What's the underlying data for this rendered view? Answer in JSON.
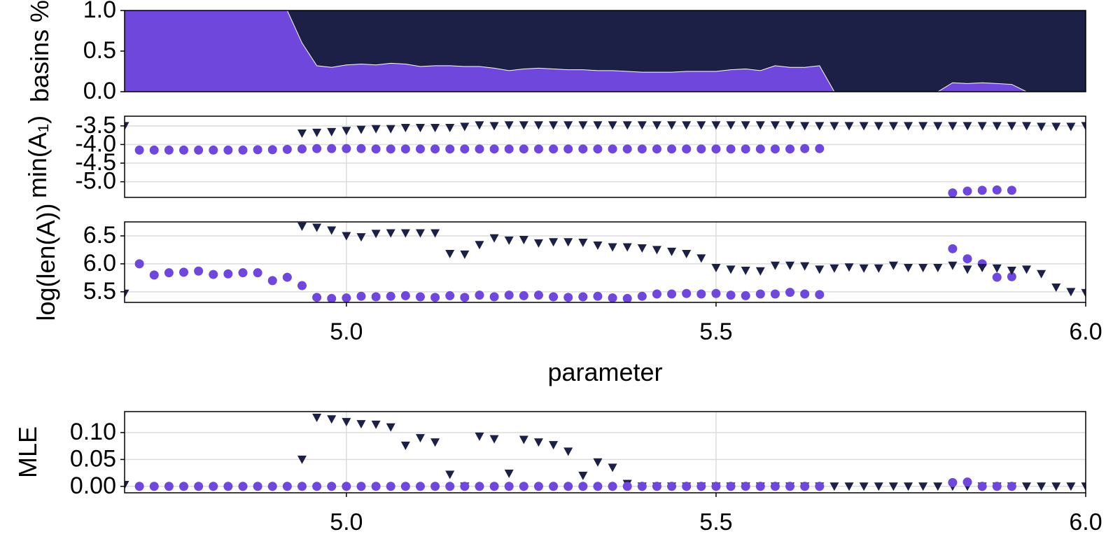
{
  "chart_data": [
    {
      "type": "area",
      "ylabel": "basins %",
      "background": "#1c2046",
      "outline": "#ffffff",
      "xlim": [
        4.7,
        6.0
      ],
      "ylim": [
        0,
        1
      ],
      "yticks": [
        {
          "value": 0,
          "label": "0.0"
        },
        {
          "value": 0.5,
          "label": "0.5"
        },
        {
          "value": 1,
          "label": "1.0"
        }
      ],
      "x": [
        4.7,
        4.72,
        4.74,
        4.76,
        4.78,
        4.8,
        4.82,
        4.84,
        4.86,
        4.88,
        4.9,
        4.92,
        4.94,
        4.96,
        4.98,
        5,
        5.02,
        5.04,
        5.06,
        5.08,
        5.1,
        5.12,
        5.14,
        5.16,
        5.18,
        5.2,
        5.22,
        5.24,
        5.26,
        5.28,
        5.3,
        5.32,
        5.34,
        5.36,
        5.38,
        5.4,
        5.42,
        5.44,
        5.46,
        5.48,
        5.5,
        5.52,
        5.54,
        5.56,
        5.58,
        5.6,
        5.62,
        5.64,
        5.66,
        5.68,
        5.7,
        5.72,
        5.74,
        5.76,
        5.78,
        5.8,
        5.82,
        5.84,
        5.86,
        5.88,
        5.9,
        5.92,
        5.94,
        5.96,
        5.98,
        6
      ],
      "series": [
        {
          "color": "#6f47dc",
          "values": [
            1,
            1,
            1,
            1,
            1,
            1,
            1,
            1,
            1,
            1,
            1,
            1,
            0.6,
            0.32,
            0.3,
            0.33,
            0.34,
            0.33,
            0.35,
            0.34,
            0.31,
            0.32,
            0.32,
            0.31,
            0.31,
            0.29,
            0.26,
            0.28,
            0.29,
            0.28,
            0.27,
            0.27,
            0.26,
            0.26,
            0.25,
            0.24,
            0.24,
            0.24,
            0.25,
            0.25,
            0.25,
            0.27,
            0.28,
            0.26,
            0.32,
            0.3,
            0.3,
            0.32,
            0,
            0,
            0,
            0,
            0,
            0,
            0,
            0,
            0.11,
            0.1,
            0.11,
            0.1,
            0.09,
            0,
            0,
            0,
            0,
            0
          ]
        }
      ]
    },
    {
      "type": "scatter",
      "ylabel": "min(A₁)",
      "grid": true,
      "xlim": [
        4.7,
        6.0
      ],
      "ylim": [
        -5.42,
        -3.24
      ],
      "yticks": [
        -3.5,
        {
          "value": -4,
          "label": "-4.0"
        },
        -4.5,
        {
          "value": -5,
          "label": "-5.0"
        }
      ],
      "x": [
        4.7,
        4.72,
        4.74,
        4.76,
        4.78,
        4.8,
        4.82,
        4.84,
        4.86,
        4.88,
        4.9,
        4.92,
        4.94,
        4.96,
        4.98,
        5,
        5.02,
        5.04,
        5.06,
        5.08,
        5.1,
        5.12,
        5.14,
        5.16,
        5.18,
        5.2,
        5.22,
        5.24,
        5.26,
        5.28,
        5.3,
        5.32,
        5.34,
        5.36,
        5.38,
        5.4,
        5.42,
        5.44,
        5.46,
        5.48,
        5.5,
        5.52,
        5.54,
        5.56,
        5.58,
        5.6,
        5.62,
        5.64,
        5.66,
        5.68,
        5.7,
        5.72,
        5.74,
        5.76,
        5.78,
        5.8,
        5.82,
        5.84,
        5.86,
        5.88,
        5.9,
        5.92,
        5.94,
        5.96,
        5.98,
        6
      ],
      "series": [
        {
          "color": "#6f47dc",
          "marker": "circle",
          "values": [
            null,
            -4.15,
            -4.15,
            -4.15,
            -4.15,
            -4.15,
            -4.15,
            -4.15,
            -4.15,
            -4.14,
            -4.14,
            -4.13,
            -4.12,
            -4.11,
            -4.11,
            -4.11,
            -4.11,
            -4.12,
            -4.12,
            -4.12,
            -4.12,
            -4.12,
            -4.12,
            -4.12,
            -4.12,
            -4.12,
            -4.12,
            -4.12,
            -4.12,
            -4.12,
            -4.12,
            -4.12,
            -4.12,
            -4.12,
            -4.12,
            -4.12,
            -4.12,
            -4.12,
            -4.12,
            -4.12,
            -4.12,
            -4.12,
            -4.12,
            -4.12,
            -4.12,
            -4.12,
            -4.11,
            -4.11,
            null,
            null,
            null,
            null,
            null,
            null,
            null,
            null,
            -5.3,
            -5.25,
            -5.23,
            -5.22,
            -5.23,
            null,
            null,
            null,
            null,
            null
          ]
        },
        {
          "color": "#1c2046",
          "marker": "triangle-down",
          "values": [
            -3.5,
            null,
            null,
            null,
            null,
            null,
            null,
            null,
            null,
            null,
            null,
            null,
            -3.7,
            -3.68,
            -3.66,
            -3.63,
            -3.6,
            -3.58,
            -3.58,
            -3.55,
            -3.55,
            -3.55,
            -3.55,
            -3.52,
            -3.48,
            -3.5,
            -3.48,
            -3.48,
            -3.48,
            -3.48,
            -3.48,
            -3.48,
            -3.48,
            -3.48,
            -3.48,
            -3.48,
            -3.48,
            -3.48,
            -3.48,
            -3.48,
            -3.48,
            -3.48,
            -3.48,
            -3.48,
            -3.48,
            -3.48,
            -3.5,
            -3.5,
            -3.5,
            -3.5,
            -3.5,
            -3.5,
            -3.5,
            -3.5,
            -3.5,
            -3.5,
            -3.5,
            -3.5,
            -3.5,
            -3.5,
            -3.5,
            -3.5,
            -3.52,
            -3.52,
            -3.52,
            -3.5
          ]
        }
      ]
    },
    {
      "type": "scatter",
      "ylabel": "log(len(A))",
      "xlabel": "parameter",
      "grid": true,
      "xlim": [
        4.7,
        6.0
      ],
      "ylim": [
        5.31,
        6.75
      ],
      "xticks": [
        {
          "value": 5,
          "label": "5.0"
        },
        5.5,
        {
          "value": 6,
          "label": "6.0"
        }
      ],
      "yticks": [
        5.5,
        {
          "value": 6,
          "label": "6.0"
        },
        6.5
      ],
      "x": [
        4.7,
        4.72,
        4.74,
        4.76,
        4.78,
        4.8,
        4.82,
        4.84,
        4.86,
        4.88,
        4.9,
        4.92,
        4.94,
        4.96,
        4.98,
        5,
        5.02,
        5.04,
        5.06,
        5.08,
        5.1,
        5.12,
        5.14,
        5.16,
        5.18,
        5.2,
        5.22,
        5.24,
        5.26,
        5.28,
        5.3,
        5.32,
        5.34,
        5.36,
        5.38,
        5.4,
        5.42,
        5.44,
        5.46,
        5.48,
        5.5,
        5.52,
        5.54,
        5.56,
        5.58,
        5.6,
        5.62,
        5.64,
        5.66,
        5.68,
        5.7,
        5.72,
        5.74,
        5.76,
        5.78,
        5.8,
        5.82,
        5.84,
        5.86,
        5.88,
        5.9,
        5.92,
        5.94,
        5.96,
        5.98,
        6
      ],
      "series": [
        {
          "color": "#6f47dc",
          "marker": "circle",
          "values": [
            null,
            6.0,
            5.8,
            5.84,
            5.85,
            5.87,
            5.81,
            5.82,
            5.84,
            5.84,
            5.7,
            5.76,
            5.61,
            5.4,
            5.38,
            5.39,
            5.42,
            5.41,
            5.42,
            5.43,
            5.41,
            5.4,
            5.43,
            5.4,
            5.44,
            5.41,
            5.44,
            5.43,
            5.44,
            5.41,
            5.4,
            5.41,
            5.42,
            5.39,
            5.38,
            5.42,
            5.46,
            5.46,
            5.47,
            5.46,
            5.47,
            5.44,
            5.43,
            5.46,
            5.46,
            5.49,
            5.46,
            5.45,
            null,
            null,
            null,
            null,
            null,
            null,
            null,
            null,
            6.27,
            6.09,
            6.0,
            5.76,
            5.77,
            null,
            null,
            null,
            null,
            null
          ]
        },
        {
          "color": "#1c2046",
          "marker": "triangle-down",
          "values": [
            5.47,
            null,
            null,
            null,
            null,
            null,
            null,
            null,
            null,
            null,
            null,
            null,
            6.67,
            6.65,
            6.6,
            6.5,
            6.48,
            6.54,
            6.55,
            6.55,
            6.55,
            6.55,
            6.18,
            6.17,
            6.34,
            6.46,
            6.42,
            6.43,
            6.37,
            6.39,
            6.39,
            6.38,
            6.33,
            6.3,
            6.3,
            6.28,
            6.25,
            6.22,
            6.18,
            6.1,
            5.93,
            5.9,
            5.88,
            5.87,
            5.97,
            5.97,
            5.96,
            5.9,
            5.92,
            5.94,
            5.92,
            5.92,
            5.97,
            5.93,
            5.93,
            5.93,
            5.97,
            5.9,
            5.93,
            5.92,
            5.88,
            5.9,
            5.82,
            5.58,
            5.5,
            5.48
          ]
        }
      ]
    },
    {
      "type": "scatter",
      "ylabel": "MLE",
      "grid": true,
      "xlim": [
        4.7,
        6.0
      ],
      "ylim": [
        -0.012,
        0.139
      ],
      "xticks": [
        {
          "value": 5,
          "label": "5.0"
        },
        5.5,
        {
          "value": 6,
          "label": "6.0"
        }
      ],
      "yticks": [
        {
          "value": 0,
          "label": "0.00"
        },
        0.05,
        {
          "value": 0.1,
          "label": "0.10"
        }
      ],
      "x": [
        4.7,
        4.72,
        4.74,
        4.76,
        4.78,
        4.8,
        4.82,
        4.84,
        4.86,
        4.88,
        4.9,
        4.92,
        4.94,
        4.96,
        4.98,
        5,
        5.02,
        5.04,
        5.06,
        5.08,
        5.1,
        5.12,
        5.14,
        5.16,
        5.18,
        5.2,
        5.22,
        5.24,
        5.26,
        5.28,
        5.3,
        5.32,
        5.34,
        5.36,
        5.38,
        5.4,
        5.42,
        5.44,
        5.46,
        5.48,
        5.5,
        5.52,
        5.54,
        5.56,
        5.58,
        5.6,
        5.62,
        5.64,
        5.66,
        5.68,
        5.7,
        5.72,
        5.74,
        5.76,
        5.78,
        5.8,
        5.82,
        5.84,
        5.86,
        5.88,
        5.9,
        5.92,
        5.94,
        5.96,
        5.98,
        6
      ],
      "series": [
        {
          "color": "#1c2046",
          "marker": "triangle-down",
          "values": [
            0.003,
            null,
            null,
            null,
            null,
            null,
            null,
            null,
            null,
            null,
            null,
            null,
            0.05,
            0.128,
            0.125,
            0.12,
            0.116,
            0.115,
            0.11,
            0.076,
            0.09,
            0.082,
            0.022,
            0,
            0.093,
            0.088,
            0.024,
            0.087,
            0.082,
            0.077,
            0.065,
            0.02,
            0.045,
            0.035,
            0.005,
            0,
            0,
            0,
            0,
            0,
            0,
            0,
            0,
            0,
            0,
            0,
            0,
            0,
            0,
            0,
            0,
            0,
            0,
            0,
            0,
            0,
            0,
            0,
            0,
            0,
            0,
            0,
            0,
            0,
            0,
            0
          ]
        },
        {
          "color": "#6f47dc",
          "marker": "circle",
          "values": [
            null,
            0,
            0,
            0,
            0,
            0,
            0,
            0,
            0,
            0,
            0,
            0,
            0,
            0,
            0,
            0,
            0,
            0,
            0,
            0,
            0,
            0,
            0,
            0,
            0,
            0,
            0,
            0,
            0,
            0,
            0,
            0,
            0,
            0,
            0,
            0,
            0,
            0,
            0,
            0,
            0,
            0,
            0,
            0,
            0,
            0,
            0,
            0,
            null,
            null,
            null,
            null,
            null,
            null,
            null,
            null,
            0.007,
            0.008,
            0,
            0,
            0,
            null,
            null,
            null,
            null,
            null
          ]
        }
      ]
    }
  ]
}
